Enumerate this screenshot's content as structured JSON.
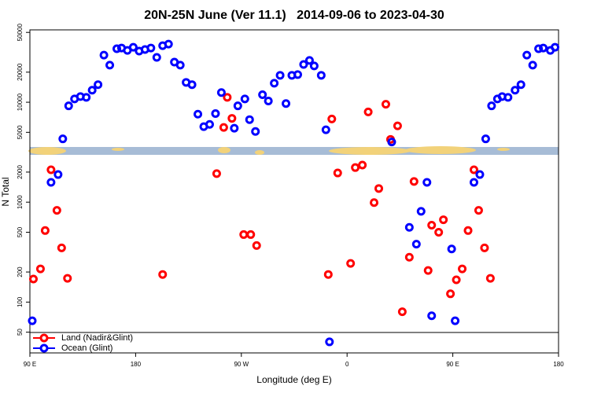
{
  "chart_data": {
    "type": "scatter",
    "title": "20N-25N June (Ver 11.1)   2014-09-06 to 2023-04-30",
    "x_label": "Longitude (deg E)",
    "y_label": "N Total",
    "log_y": true,
    "legend": "bottom-left",
    "xlim": [
      90,
      540
    ],
    "xticks": [
      {
        "value": 90,
        "label": "90 E"
      },
      {
        "value": 180,
        "label": "180"
      },
      {
        "value": 270,
        "label": "90 W"
      },
      {
        "value": 360,
        "label": "0"
      },
      {
        "value": 450,
        "label": "90 E"
      },
      {
        "value": 540,
        "label": "180"
      }
    ],
    "ylim": [
      31,
      53000
    ],
    "yticks": [
      50,
      100,
      200,
      500,
      1000,
      2000,
      5000,
      10000,
      20000,
      50000
    ],
    "series": [
      {
        "name": "Land (Nadir&Glint)",
        "color": "#ff0000",
        "x": [
          93,
          99,
          103,
          108,
          113,
          117,
          122,
          203,
          249,
          255,
          258,
          262,
          272,
          278,
          283,
          344,
          347,
          352,
          363,
          367,
          373,
          378,
          383,
          387,
          393,
          397,
          403,
          407,
          413,
          417,
          429,
          432,
          438,
          442,
          448,
          453,
          458,
          463,
          468,
          472,
          477,
          482
        ],
        "values": [
          170,
          215,
          520,
          2110,
          828,
          349,
          173,
          189,
          1930,
          5600,
          11200,
          6900,
          474,
          474,
          368,
          189,
          6800,
          1960,
          244,
          2220,
          2350,
          8000,
          990,
          1370,
          9550,
          4250,
          5800,
          80,
          281,
          1610,
          207,
          588,
          500,
          667,
          121,
          167,
          215,
          520,
          2110,
          828,
          349,
          173
        ]
      },
      {
        "name": "Ocean (Glint)",
        "color": "#0000ff",
        "x": [
          92,
          108,
          114,
          118,
          123,
          128,
          133,
          138,
          143,
          148,
          153,
          158,
          164,
          168,
          173,
          178,
          183,
          188,
          193,
          198,
          203,
          208,
          213,
          218,
          223,
          228,
          233,
          238,
          243,
          248,
          253,
          264,
          267,
          273,
          277,
          282,
          288,
          293,
          298,
          303,
          308,
          313,
          318,
          323,
          328,
          332,
          338,
          342,
          345,
          398,
          413,
          419,
          423,
          428,
          432,
          449,
          452,
          468,
          473,
          478,
          483,
          488,
          492,
          497,
          503,
          508,
          513,
          518,
          523,
          527,
          533,
          537
        ],
        "values": [
          65,
          1580,
          1890,
          4300,
          9200,
          10800,
          11400,
          11200,
          13200,
          15000,
          29600,
          23500,
          34300,
          34900,
          33000,
          35500,
          32500,
          33700,
          34900,
          28100,
          36800,
          38200,
          25200,
          23500,
          15800,
          15000,
          7600,
          5700,
          6000,
          7700,
          12500,
          5500,
          9200,
          10800,
          6700,
          5100,
          11900,
          10300,
          15500,
          18600,
          9700,
          18600,
          18900,
          23900,
          26200,
          23100,
          18600,
          5300,
          40,
          4000,
          560,
          380,
          810,
          1580,
          73,
          340,
          65,
          1580,
          1890,
          4300,
          9200,
          10800,
          11400,
          11200,
          13200,
          15000,
          29600,
          23500,
          34300,
          34900,
          33000,
          35500
        ]
      }
    ]
  }
}
